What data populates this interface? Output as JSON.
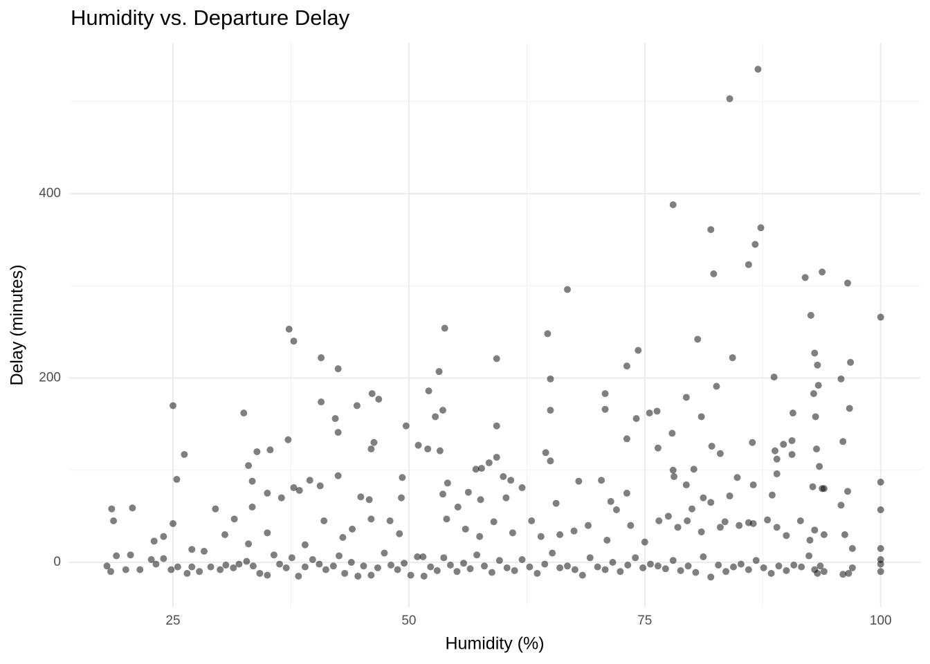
{
  "chart_data": {
    "type": "scatter",
    "title": "Humidity vs. Departure Delay",
    "x_label": "Humidity (%)",
    "y_label": "Delay (minutes)",
    "xlim": [
      14,
      104.2
    ],
    "ylim": [
      -48.8,
      563.6
    ],
    "xticks": [
      25,
      50,
      75,
      100
    ],
    "yticks": [
      0,
      200,
      400
    ],
    "minor_xticks": [
      37.5,
      62.5,
      87.5
    ],
    "minor_yticks": [
      100,
      300,
      500
    ],
    "grid": true,
    "series": [
      {
        "color": "#000000",
        "opacity": 0.5,
        "x": [
          84,
          87,
          78,
          87.3,
          82,
          86.7,
          86,
          82.3,
          93.8,
          92,
          96.5,
          66.8,
          100,
          92.6,
          37.3,
          53.8,
          37.8,
          64.7,
          80.6,
          74.3,
          40.7,
          59.3,
          84.3,
          93,
          96.8,
          42.5,
          53.2,
          73.1,
          93.3,
          88.7,
          65,
          95.8,
          82.6,
          93.4,
          92.9,
          46.1,
          70.8,
          46.8,
          79.4,
          40.7,
          44.5,
          25,
          52.1,
          53.6,
          65,
          70.8,
          76.3,
          75.5,
          90.7,
          96.7,
          32.5,
          52.8,
          74.1,
          81,
          93.1,
          42.2,
          49.7,
          59.3,
          42.5,
          77.9,
          46.3,
          37.2,
          73.1,
          86.4,
          89.7,
          90.6,
          96,
          51,
          82.1,
          33.9,
          35.3,
          52,
          53.3,
          46,
          64.5,
          76.4,
          83,
          88.8,
          90.6,
          93.2,
          26.2,
          33,
          59.3,
          65,
          89,
          93.5,
          25.4,
          33.4,
          42.5,
          49.3,
          39.5,
          54.1,
          57.1,
          57.7,
          58.5,
          60,
          60.8,
          62,
          68,
          78,
          18.5,
          18.7,
          20.7,
          25,
          33.4,
          35,
          37.8,
          38.4,
          40.6,
          44.9,
          45.8,
          49.2,
          53.6,
          55.2,
          56.3,
          57.6,
          60.3,
          65.6,
          70.4,
          71.4,
          73.1,
          78.1,
          79.4,
          80,
          81.2,
          84,
          84.8,
          86.5,
          88.5,
          94,
          23,
          24,
          27,
          29.5,
          30.5,
          31.5,
          33,
          35,
          36.5,
          39,
          41,
          43,
          44,
          46,
          48,
          49,
          51.5,
          54,
          56,
          57.5,
          59,
          61,
          63,
          64,
          66,
          67.5,
          69,
          71,
          72,
          73.5,
          75,
          76.5,
          77.5,
          78.5,
          79.5,
          81,
          82,
          83,
          83.5,
          85,
          86.5,
          88,
          89,
          90,
          91.5,
          92.5,
          93,
          94,
          96.2,
          97,
          18,
          18.4,
          19,
          20,
          20.5,
          21.5,
          22.7,
          23.2,
          24,
          24.8,
          25.5,
          26.5,
          27,
          27.8,
          28.3,
          29,
          30,
          30.6,
          31.4,
          32,
          32.8,
          33.5,
          34.2,
          35,
          35.7,
          36.3,
          37,
          37.6,
          38.3,
          39,
          39.8,
          40.5,
          41.2,
          42,
          42.6,
          43.2,
          43.9,
          44.6,
          45.2,
          46,
          46.7,
          47.4,
          48.1,
          48.8,
          49.5,
          50.2,
          50.9,
          51.6,
          52.3,
          53,
          53.7,
          54.4,
          55.1,
          55.8,
          56.5,
          57.2,
          58,
          58.8,
          59.6,
          60.4,
          61.2,
          62,
          62.8,
          63.6,
          64.4,
          65.2,
          66,
          66.8,
          67.6,
          68.4,
          69.2,
          70,
          70.8,
          71.6,
          72.4,
          73.2,
          74,
          74.8,
          75.6,
          76.4,
          77.2,
          78,
          78.8,
          79.6,
          80.4,
          81.2,
          82,
          82.8,
          83.6,
          84.4,
          85.2,
          86,
          86.8,
          87.6,
          88.4,
          89.2,
          90,
          90.8,
          91.6,
          92.4,
          93,
          93.3,
          93.6,
          94,
          96,
          96.6,
          97,
          100,
          100,
          100,
          100,
          100,
          100,
          96.5,
          95.8,
          93.8,
          92.8,
          89,
          86,
          80.2
        ],
        "values": [
          503,
          535,
          388,
          363,
          361,
          345,
          323,
          313,
          315,
          309,
          303,
          296,
          266,
          268,
          253,
          254,
          240,
          248,
          242,
          230,
          222,
          221,
          222,
          227,
          217,
          210,
          207,
          213,
          214,
          201,
          199,
          199,
          191,
          192,
          183,
          183,
          183,
          177,
          179,
          174,
          170,
          170,
          186,
          165,
          165,
          166,
          164,
          162,
          162,
          167,
          162,
          158,
          156,
          158,
          158,
          156,
          148,
          148,
          141,
          140,
          130,
          133,
          134,
          130,
          128,
          132,
          131,
          127,
          126,
          120,
          122,
          123,
          121,
          123,
          119,
          124,
          118,
          121,
          117,
          123,
          117,
          105,
          114,
          110,
          112,
          104,
          90,
          88,
          94,
          92,
          89,
          86,
          101,
          102,
          108,
          93,
          89,
          81,
          88,
          100,
          58,
          45,
          59,
          42,
          60,
          75,
          81,
          78,
          83,
          71,
          68,
          70,
          74,
          60,
          76,
          68,
          70,
          64,
          89,
          66,
          75,
          93,
          84,
          58,
          70,
          72,
          92,
          84,
          73,
          80,
          23,
          28,
          14,
          58,
          30,
          47,
          20,
          32,
          70,
          19,
          45,
          27,
          36,
          47,
          45,
          31,
          6,
          47,
          36,
          28,
          44,
          32,
          45,
          28,
          30,
          34,
          40,
          24,
          57,
          40,
          22,
          45,
          50,
          38,
          45,
          33,
          65,
          38,
          44,
          40,
          42,
          46,
          38,
          29,
          45,
          24,
          35,
          30,
          30,
          15,
          -4,
          -10,
          7,
          -8,
          8,
          -8,
          3,
          -2,
          4,
          -8,
          -5,
          -12,
          -5,
          -10,
          12,
          -5,
          -8,
          -3,
          -6,
          -2,
          1,
          -4,
          -12,
          -14,
          8,
          -2,
          -6,
          5,
          -15,
          -5,
          3,
          -2,
          -8,
          -4,
          7,
          -12,
          0,
          -15,
          -4,
          -14,
          -6,
          10,
          -3,
          -8,
          -1,
          -14,
          6,
          -15,
          -5,
          -9,
          5,
          -3,
          -10,
          -1,
          -7,
          8,
          -4,
          -11,
          2,
          -6,
          -9,
          3,
          -5,
          -12,
          -2,
          10,
          -6,
          -4,
          -8,
          -14,
          5,
          -5,
          -8,
          0,
          -10,
          -3,
          5,
          -6,
          -2,
          -4,
          -7,
          2,
          -9,
          -4,
          -11,
          6,
          -16,
          -3,
          -10,
          -5,
          -2,
          -8,
          2,
          -6,
          -12,
          -4,
          -9,
          -3,
          -5,
          7,
          -8,
          -12,
          -4,
          -10,
          -13,
          -12,
          -6,
          -2,
          15,
          87,
          57,
          -10,
          3,
          77,
          62,
          80,
          82,
          96,
          43,
          101
        ]
      }
    ]
  }
}
